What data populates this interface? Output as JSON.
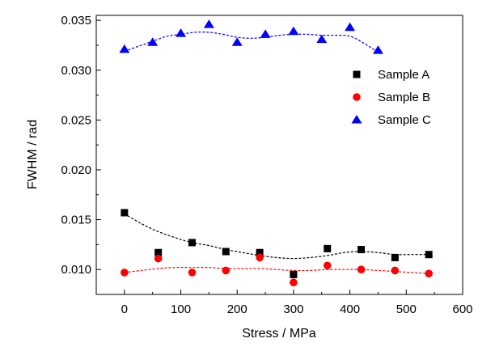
{
  "chart_data": {
    "type": "scatter",
    "xlabel": "Stress / MPa",
    "ylabel": "FWHM / rad",
    "xlim": [
      -50,
      600
    ],
    "ylim": [
      0.0075,
      0.0355
    ],
    "x_ticks": [
      "0",
      "100",
      "200",
      "300",
      "400",
      "500",
      "600"
    ],
    "y_ticks": [
      "0.010",
      "0.015",
      "0.020",
      "0.025",
      "0.030",
      "0.035"
    ],
    "grid": false,
    "legend_position": "right-upper",
    "series": [
      {
        "name": "Sample A",
        "marker": "square",
        "color": "#000000",
        "points": [
          [
            0,
            0.0157
          ],
          [
            60,
            0.0117
          ],
          [
            120,
            0.0127
          ],
          [
            180,
            0.0118
          ],
          [
            240,
            0.0117
          ],
          [
            300,
            0.0095
          ],
          [
            360,
            0.0121
          ],
          [
            420,
            0.012
          ],
          [
            480,
            0.0112
          ],
          [
            540,
            0.0115
          ]
        ],
        "trend": [
          [
            0,
            0.0156
          ],
          [
            30,
            0.0146
          ],
          [
            60,
            0.0138
          ],
          [
            90,
            0.0132
          ],
          [
            120,
            0.0127
          ],
          [
            150,
            0.0124
          ],
          [
            180,
            0.012
          ],
          [
            210,
            0.0117
          ],
          [
            240,
            0.0114
          ],
          [
            270,
            0.0112
          ],
          [
            300,
            0.0111
          ],
          [
            330,
            0.0112
          ],
          [
            360,
            0.0114
          ],
          [
            390,
            0.0117
          ],
          [
            420,
            0.0118
          ],
          [
            450,
            0.0117
          ],
          [
            480,
            0.0115
          ],
          [
            510,
            0.0115
          ],
          [
            540,
            0.0115
          ]
        ]
      },
      {
        "name": "Sample B",
        "marker": "circle",
        "color": "#ff0000",
        "points": [
          [
            0,
            0.0097
          ],
          [
            60,
            0.0111
          ],
          [
            120,
            0.0097
          ],
          [
            180,
            0.0099
          ],
          [
            240,
            0.0112
          ],
          [
            300,
            0.0087
          ],
          [
            360,
            0.0104
          ],
          [
            420,
            0.01
          ],
          [
            480,
            0.0099
          ],
          [
            540,
            0.0096
          ]
        ],
        "trend": [
          [
            0,
            0.0097
          ],
          [
            30,
            0.0099
          ],
          [
            60,
            0.0101
          ],
          [
            90,
            0.0102
          ],
          [
            120,
            0.0102
          ],
          [
            150,
            0.0102
          ],
          [
            180,
            0.0101
          ],
          [
            210,
            0.0101
          ],
          [
            240,
            0.0101
          ],
          [
            270,
            0.01
          ],
          [
            300,
            0.0099
          ],
          [
            330,
            0.0099
          ],
          [
            360,
            0.01
          ],
          [
            390,
            0.01
          ],
          [
            420,
            0.01
          ],
          [
            450,
            0.0099
          ],
          [
            480,
            0.0098
          ],
          [
            510,
            0.0097
          ],
          [
            540,
            0.0096
          ]
        ]
      },
      {
        "name": "Sample C",
        "marker": "triangle",
        "color": "#0000ff",
        "points": [
          [
            0,
            0.0321
          ],
          [
            50,
            0.0328
          ],
          [
            100,
            0.0337
          ],
          [
            150,
            0.0346
          ],
          [
            200,
            0.0328
          ],
          [
            250,
            0.0336
          ],
          [
            300,
            0.0339
          ],
          [
            350,
            0.0331
          ],
          [
            400,
            0.0343
          ],
          [
            450,
            0.032
          ]
        ],
        "trend": [
          [
            0,
            0.0319
          ],
          [
            25,
            0.0324
          ],
          [
            50,
            0.0329
          ],
          [
            75,
            0.0334
          ],
          [
            100,
            0.0336
          ],
          [
            125,
            0.0338
          ],
          [
            150,
            0.0338
          ],
          [
            175,
            0.0336
          ],
          [
            200,
            0.0333
          ],
          [
            225,
            0.0332
          ],
          [
            250,
            0.0333
          ],
          [
            275,
            0.0335
          ],
          [
            300,
            0.0336
          ],
          [
            325,
            0.0336
          ],
          [
            350,
            0.0335
          ],
          [
            375,
            0.0335
          ],
          [
            400,
            0.0334
          ],
          [
            425,
            0.0327
          ],
          [
            450,
            0.0318
          ]
        ]
      }
    ]
  }
}
